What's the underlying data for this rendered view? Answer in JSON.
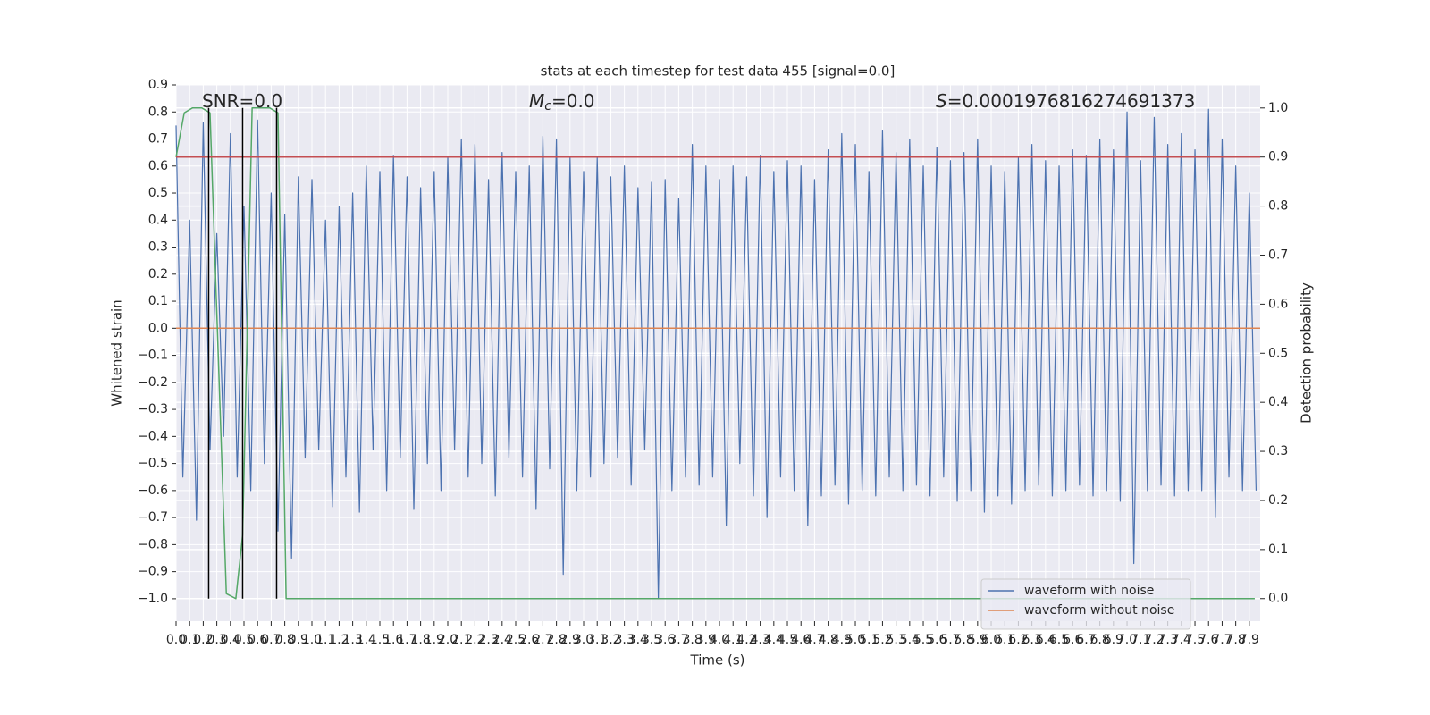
{
  "chart_data": {
    "type": "line",
    "title": "stats at each timestep for test data 455 [signal=0.0]",
    "xlabel": "Time (s)",
    "ylabel": "Whitened strain",
    "y2label": "Detection probability",
    "annotations": [
      {
        "text": "SNR=0.0"
      },
      {
        "symbol": "M",
        "sub": "c",
        "text": "=0.0"
      },
      {
        "symbol": "S",
        "text": "=0.0001976816274691373"
      }
    ],
    "xlim": [
      0,
      7.98
    ],
    "ylim": [
      -1.083,
      0.9
    ],
    "y2lim": [
      -0.046,
      1.047
    ],
    "xticks": [
      {
        "value": 0,
        "label": "0.0"
      },
      0.1,
      0.2,
      0.3,
      0.4,
      0.5,
      0.6,
      0.7,
      0.8,
      0.9,
      {
        "value": 1,
        "label": "1.0"
      },
      1.1,
      1.2,
      1.3,
      1.4,
      1.5,
      1.6,
      1.7,
      1.8,
      1.9,
      {
        "value": 2,
        "label": "2.0"
      },
      2.1,
      2.2,
      2.3,
      2.4,
      2.5,
      2.6,
      2.7,
      2.8,
      2.9,
      {
        "value": 3,
        "label": "3.0"
      },
      3.1,
      3.2,
      3.3,
      3.4,
      3.5,
      3.6,
      3.7,
      3.8,
      3.9,
      {
        "value": 4,
        "label": "4.0"
      },
      4.1,
      4.2,
      4.3,
      4.4,
      4.5,
      4.6,
      4.7,
      4.8,
      4.9,
      {
        "value": 5,
        "label": "5.0"
      },
      5.1,
      5.2,
      5.3,
      5.4,
      5.5,
      5.6,
      5.7,
      5.8,
      5.9,
      {
        "value": 6,
        "label": "6.0"
      },
      6.1,
      6.2,
      6.3,
      6.4,
      6.5,
      6.6,
      6.7,
      6.8,
      6.9,
      {
        "value": 7,
        "label": "7.0"
      },
      7.1,
      7.2,
      7.3,
      7.4,
      7.5,
      7.6,
      7.7,
      7.8,
      7.9
    ],
    "yticks": [
      {
        "value": -1,
        "label": "−1.0"
      },
      {
        "value": -0.9,
        "label": "−0.9"
      },
      {
        "value": -0.8,
        "label": "−0.8"
      },
      {
        "value": -0.7,
        "label": "−0.7"
      },
      {
        "value": -0.6,
        "label": "−0.6"
      },
      {
        "value": -0.5,
        "label": "−0.5"
      },
      {
        "value": -0.4,
        "label": "−0.4"
      },
      {
        "value": -0.3,
        "label": "−0.3"
      },
      {
        "value": -0.2,
        "label": "−0.2"
      },
      {
        "value": -0.1,
        "label": "−0.1"
      },
      {
        "value": 0,
        "label": "0.0"
      },
      0.1,
      0.2,
      0.3,
      0.4,
      0.5,
      0.6,
      0.7,
      0.8,
      0.9
    ],
    "y2ticks": [
      {
        "value": 0,
        "label": "0.0"
      },
      0.1,
      0.2,
      0.3,
      0.4,
      0.5,
      0.6,
      0.7,
      0.8,
      0.9,
      {
        "value": 1,
        "label": "1.0"
      }
    ],
    "grid": true,
    "y2grid": true,
    "legend": "lower right",
    "series": [
      {
        "name": "waveform with noise",
        "color": "#4c72b0",
        "x": [
          0,
          0.05,
          0.1,
          0.15,
          0.2,
          0.25,
          0.3,
          0.35,
          0.4,
          0.45,
          0.5,
          0.55,
          0.6,
          0.65,
          0.7,
          0.75,
          0.8,
          0.85,
          0.9,
          0.95,
          1,
          1.05,
          1.1,
          1.15,
          1.2,
          1.25,
          1.3,
          1.35,
          1.4,
          1.45,
          1.5,
          1.55,
          1.6,
          1.65,
          1.7,
          1.75,
          1.8,
          1.85,
          1.9,
          1.95,
          2,
          2.05,
          2.1,
          2.15,
          2.2,
          2.25,
          2.3,
          2.35,
          2.4,
          2.45,
          2.5,
          2.55,
          2.6,
          2.65,
          2.7,
          2.75,
          2.8,
          2.85,
          2.9,
          2.95,
          3,
          3.05,
          3.1,
          3.15,
          3.2,
          3.25,
          3.3,
          3.35,
          3.4,
          3.45,
          3.5,
          3.55,
          3.6,
          3.65,
          3.7,
          3.75,
          3.8,
          3.85,
          3.9,
          3.95,
          4,
          4.05,
          4.1,
          4.15,
          4.2,
          4.25,
          4.3,
          4.35,
          4.4,
          4.45,
          4.5,
          4.55,
          4.6,
          4.65,
          4.7,
          4.75,
          4.8,
          4.85,
          4.9,
          4.95,
          5,
          5.05,
          5.1,
          5.15,
          5.2,
          5.25,
          5.3,
          5.35,
          5.4,
          5.45,
          5.5,
          5.55,
          5.6,
          5.65,
          5.7,
          5.75,
          5.8,
          5.85,
          5.9,
          5.95,
          6,
          6.05,
          6.1,
          6.15,
          6.2,
          6.25,
          6.3,
          6.35,
          6.4,
          6.45,
          6.5,
          6.55,
          6.6,
          6.65,
          6.7,
          6.75,
          6.8,
          6.85,
          6.9,
          6.95,
          7,
          7.05,
          7.1,
          7.15,
          7.2,
          7.25,
          7.3,
          7.35,
          7.4,
          7.45,
          7.5,
          7.55,
          7.6,
          7.65,
          7.7,
          7.75,
          7.8,
          7.85,
          7.9,
          7.95
        ],
        "values": [
          0.75,
          -0.55,
          0.4,
          -0.71,
          0.76,
          -0.45,
          0.35,
          -0.4,
          0.72,
          -0.55,
          0.45,
          -0.6,
          0.77,
          -0.5,
          0.5,
          -0.75,
          0.42,
          -0.85,
          0.56,
          -0.48,
          0.55,
          -0.45,
          0.4,
          -0.66,
          0.45,
          -0.55,
          0.5,
          -0.68,
          0.6,
          -0.45,
          0.58,
          -0.6,
          0.64,
          -0.48,
          0.56,
          -0.67,
          0.52,
          -0.5,
          0.58,
          -0.6,
          0.63,
          -0.45,
          0.7,
          -0.55,
          0.68,
          -0.5,
          0.55,
          -0.62,
          0.65,
          -0.48,
          0.58,
          -0.55,
          0.6,
          -0.67,
          0.71,
          -0.52,
          0.7,
          -0.91,
          0.63,
          -0.6,
          0.58,
          -0.55,
          0.63,
          -0.5,
          0.56,
          -0.48,
          0.6,
          -0.58,
          0.52,
          -0.45,
          0.54,
          -1.0,
          0.55,
          -0.6,
          0.48,
          -0.55,
          0.68,
          -0.58,
          0.6,
          -0.55,
          0.55,
          -0.73,
          0.6,
          -0.5,
          0.56,
          -0.62,
          0.64,
          -0.7,
          0.58,
          -0.55,
          0.62,
          -0.6,
          0.6,
          -0.73,
          0.55,
          -0.62,
          0.66,
          -0.58,
          0.72,
          -0.65,
          0.68,
          -0.6,
          0.58,
          -0.62,
          0.73,
          -0.55,
          0.65,
          -0.6,
          0.7,
          -0.58,
          0.6,
          -0.62,
          0.67,
          -0.55,
          0.62,
          -0.64,
          0.65,
          -0.6,
          0.7,
          -0.68,
          0.6,
          -0.62,
          0.58,
          -0.65,
          0.63,
          -0.6,
          0.68,
          -0.58,
          0.62,
          -0.62,
          0.6,
          -0.6,
          0.66,
          -0.58,
          0.64,
          -0.62,
          0.7,
          -0.6,
          0.66,
          -0.64,
          0.8,
          -0.87,
          0.62,
          -0.6,
          0.78,
          -0.58,
          0.68,
          -0.62,
          0.72,
          -0.6,
          0.66,
          -0.6,
          0.81,
          -0.7,
          0.7,
          -0.55,
          0.6,
          -0.6,
          0.5,
          -0.6
        ]
      },
      {
        "name": "waveform without noise",
        "color": "#dd8452",
        "x": [
          0,
          7.98
        ],
        "values": [
          0,
          0
        ]
      },
      {
        "color": "#55a868",
        "axis": "y2",
        "x": [
          0,
          0.06,
          0.12,
          0.19,
          0.25,
          0.37,
          0.44,
          0.49,
          0.56,
          0.62,
          0.69,
          0.75,
          0.81,
          7.94
        ],
        "values": [
          0.9,
          0.99,
          1.0,
          1.0,
          0.99,
          0.01,
          0.0,
          0.13,
          1.0,
          1.0,
          1.0,
          0.99,
          0.0,
          0.0
        ]
      }
    ],
    "hlines": [
      {
        "value": 0.9,
        "axis": "y2",
        "color": "#c44e52"
      }
    ],
    "vlines": {
      "values": [
        0.24,
        0.49,
        0.74
      ],
      "ymin": 0,
      "ymax": 1,
      "axis": "y2",
      "color": "#000000"
    }
  }
}
